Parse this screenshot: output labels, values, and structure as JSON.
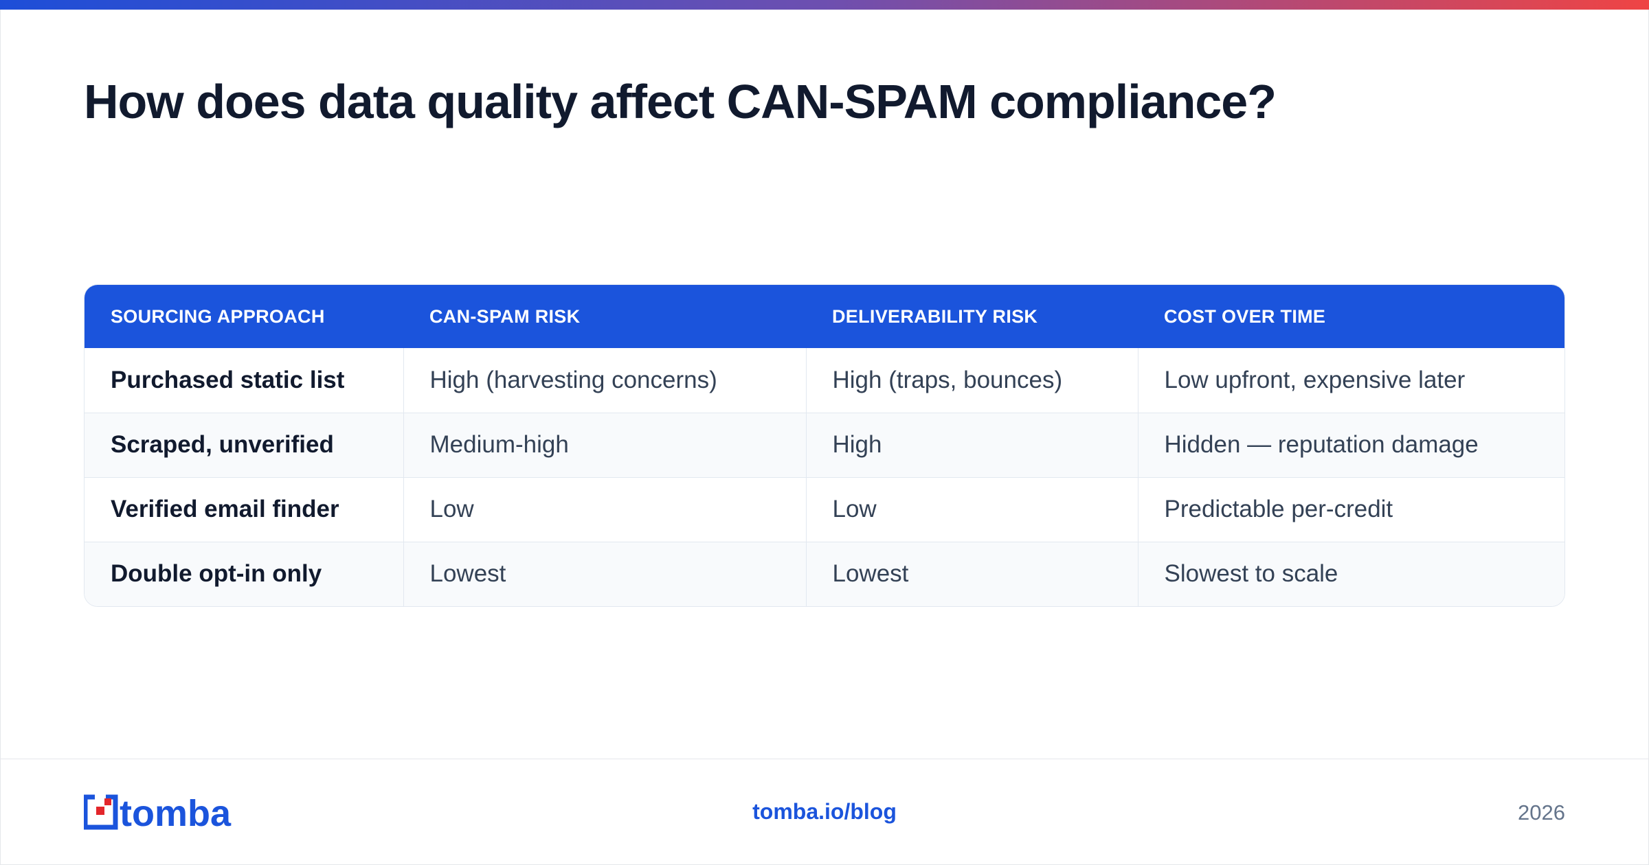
{
  "title": "How does data quality affect CAN-SPAM compliance?",
  "colors": {
    "accent": "#1b54dc",
    "gradient_end": "#ef4444",
    "logo_red": "#e3262b"
  },
  "table": {
    "headers": [
      "SOURCING APPROACH",
      "CAN-SPAM RISK",
      "DELIVERABILITY RISK",
      "COST OVER TIME"
    ],
    "rows": [
      [
        "Purchased static list",
        "High (harvesting concerns)",
        "High (traps, bounces)",
        "Low upfront, expensive later"
      ],
      [
        "Scraped, unverified",
        "Medium-high",
        "High",
        "Hidden — reputation damage"
      ],
      [
        "Verified email finder",
        "Low",
        "Low",
        "Predictable per-credit"
      ],
      [
        "Double opt-in only",
        "Lowest",
        "Lowest",
        "Slowest to scale"
      ]
    ]
  },
  "footer": {
    "logo_text": "tomba",
    "link": "tomba.io/blog",
    "year": "2026"
  }
}
